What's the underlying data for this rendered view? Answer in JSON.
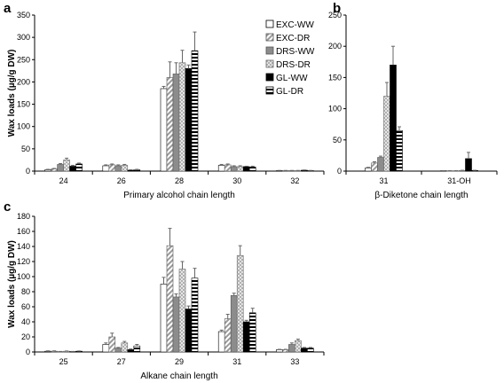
{
  "chart_data": [
    {
      "panel": "a",
      "type": "bar",
      "xlabel": "Primary alcohol chain length",
      "ylabel": "Wax loads (µg/g DW)",
      "ylim": [
        0,
        350
      ],
      "yticks": [
        0,
        50,
        100,
        150,
        200,
        250,
        300,
        350
      ],
      "categories": [
        "24",
        "26",
        "28",
        "30",
        "32"
      ],
      "series": [
        {
          "name": "EXC-WW",
          "values": [
            3,
            12,
            185,
            13,
            1
          ],
          "errors": [
            1,
            2,
            5,
            2,
            0.5
          ]
        },
        {
          "name": "EXC-DR",
          "values": [
            5,
            14,
            210,
            14,
            1
          ],
          "errors": [
            1,
            2,
            35,
            2,
            0.5
          ]
        },
        {
          "name": "DRS-WW",
          "values": [
            15,
            12,
            218,
            10,
            1
          ],
          "errors": [
            2,
            2,
            25,
            2,
            0.5
          ]
        },
        {
          "name": "DRS-DR",
          "values": [
            25,
            13,
            243,
            10,
            1
          ],
          "errors": [
            4,
            2,
            28,
            2,
            0.5
          ]
        },
        {
          "name": "GL-WW",
          "values": [
            11,
            2,
            230,
            10,
            2
          ],
          "errors": [
            2,
            1,
            8,
            1,
            0.5
          ]
        },
        {
          "name": "GL-DR",
          "values": [
            16,
            3,
            270,
            9,
            1
          ],
          "errors": [
            2,
            1,
            42,
            2,
            0.5
          ]
        }
      ]
    },
    {
      "panel": "b",
      "type": "bar",
      "xlabel": "β-Diketone chain length",
      "ylim": [
        0,
        250
      ],
      "yticks": [
        0,
        50,
        100,
        150,
        200,
        250
      ],
      "categories": [
        "31",
        "31-OH"
      ],
      "series": [
        {
          "name": "EXC-WW",
          "values": [
            5,
            0.5
          ],
          "errors": [
            1,
            0.2
          ]
        },
        {
          "name": "EXC-DR",
          "values": [
            13,
            0.5
          ],
          "errors": [
            2,
            0.2
          ]
        },
        {
          "name": "DRS-WW",
          "values": [
            22,
            0.5
          ],
          "errors": [
            2,
            0.2
          ]
        },
        {
          "name": "DRS-DR",
          "values": [
            120,
            1
          ],
          "errors": [
            22,
            0.3
          ]
        },
        {
          "name": "GL-WW",
          "values": [
            170,
            20
          ],
          "errors": [
            30,
            10
          ]
        },
        {
          "name": "GL-DR",
          "values": [
            65,
            1
          ],
          "errors": [
            6,
            0.3
          ]
        }
      ]
    },
    {
      "panel": "c",
      "type": "bar",
      "xlabel": "Alkane chain length",
      "ylabel": "Wax loads (µg/g DW)",
      "ylim": [
        0,
        180
      ],
      "yticks": [
        0,
        20,
        40,
        60,
        80,
        100,
        120,
        140,
        160,
        180
      ],
      "categories": [
        "25",
        "27",
        "29",
        "31",
        "33"
      ],
      "series": [
        {
          "name": "EXC-WW",
          "values": [
            1,
            10,
            90,
            27,
            3
          ],
          "errors": [
            0.5,
            2,
            9,
            2,
            0.5
          ]
        },
        {
          "name": "EXC-DR",
          "values": [
            1,
            20,
            141,
            44,
            3
          ],
          "errors": [
            0.5,
            5,
            23,
            6,
            0.5
          ]
        },
        {
          "name": "DRS-WW",
          "values": [
            0.5,
            5,
            73,
            75,
            10
          ],
          "errors": [
            0.2,
            1,
            4,
            3,
            2
          ]
        },
        {
          "name": "DRS-DR",
          "values": [
            1,
            12,
            110,
            128,
            15
          ],
          "errors": [
            0.3,
            2,
            10,
            13,
            2
          ]
        },
        {
          "name": "GL-WW",
          "values": [
            0.5,
            3,
            57,
            40,
            5
          ],
          "errors": [
            0.2,
            1,
            4,
            2,
            1
          ]
        },
        {
          "name": "GL-DR",
          "values": [
            1,
            8,
            98,
            52,
            5
          ],
          "errors": [
            0.3,
            2,
            13,
            6,
            1
          ]
        }
      ]
    }
  ],
  "panel_labels": {
    "a": "a",
    "b": "b",
    "c": "c"
  },
  "legend": [
    "EXC-WW",
    "EXC-DR",
    "DRS-WW",
    "DRS-DR",
    "GL-WW",
    "GL-DR"
  ]
}
